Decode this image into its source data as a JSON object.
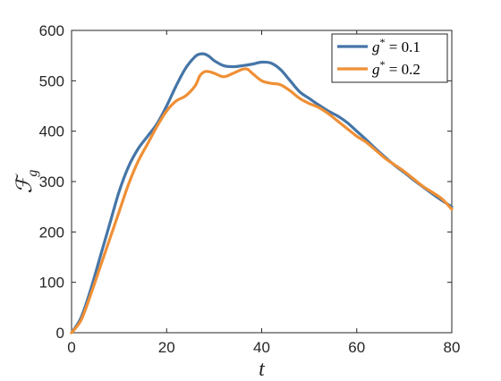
{
  "chart_data": {
    "type": "line",
    "title": "",
    "xlabel": "t",
    "ylabel": "ℱg",
    "ylabel_main": "ℱ",
    "ylabel_sub": "g",
    "xlim": [
      0,
      80
    ],
    "ylim": [
      0,
      600
    ],
    "xticks": [
      0,
      20,
      40,
      60,
      80
    ],
    "yticks": [
      0,
      100,
      200,
      300,
      400,
      500,
      600
    ],
    "grid": false,
    "legend_position": "top-right",
    "series": [
      {
        "name": "g* = 0.1",
        "color": "#4575a7",
        "x": [
          0,
          2,
          4,
          6,
          8,
          10,
          12,
          14,
          16,
          18,
          20,
          22,
          24,
          26,
          27,
          28,
          29,
          30,
          32,
          34,
          36,
          38,
          40,
          42,
          44,
          46,
          48,
          50,
          52,
          54,
          56,
          58,
          60,
          62,
          64,
          66,
          68,
          70,
          72,
          74,
          76,
          78,
          80
        ],
        "y": [
          0,
          30,
          85,
          150,
          215,
          280,
          330,
          365,
          390,
          415,
          450,
          490,
          525,
          548,
          553,
          553,
          548,
          540,
          530,
          528,
          530,
          533,
          537,
          535,
          522,
          500,
          478,
          465,
          452,
          440,
          430,
          417,
          400,
          383,
          365,
          348,
          332,
          318,
          303,
          289,
          275,
          262,
          250
        ]
      },
      {
        "name": "g* = 0.2",
        "color": "#ef8f35",
        "x": [
          0,
          2,
          4,
          6,
          8,
          10,
          12,
          14,
          16,
          18,
          20,
          22,
          24,
          26,
          27,
          28,
          29,
          30,
          32,
          34,
          36,
          37,
          38,
          40,
          42,
          44,
          46,
          48,
          50,
          52,
          54,
          56,
          58,
          60,
          62,
          64,
          66,
          68,
          70,
          72,
          74,
          76,
          78,
          80
        ],
        "y": [
          0,
          25,
          75,
          130,
          185,
          240,
          295,
          340,
          375,
          410,
          440,
          460,
          470,
          490,
          510,
          518,
          518,
          515,
          508,
          515,
          523,
          523,
          515,
          500,
          495,
          492,
          480,
          465,
          455,
          447,
          435,
          420,
          405,
          390,
          378,
          362,
          346,
          333,
          320,
          305,
          290,
          278,
          265,
          245
        ]
      }
    ]
  },
  "legend": {
    "items": [
      {
        "var": "g",
        "sup": "*",
        "rest": " = 0.1",
        "color": "#4575a7"
      },
      {
        "var": "g",
        "sup": "*",
        "rest": " = 0.2",
        "color": "#ef8f35"
      }
    ]
  }
}
